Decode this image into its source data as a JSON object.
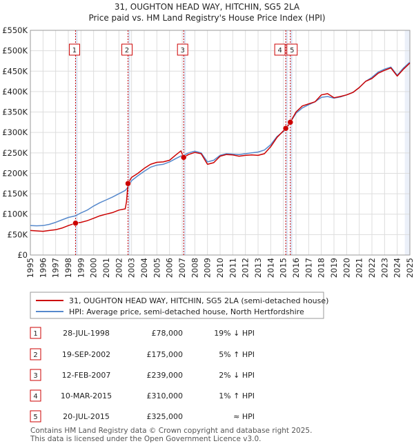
{
  "chart_data": {
    "type": "line",
    "title": "31, OUGHTON HEAD WAY, HITCHIN, SG5 2LA",
    "subtitle": "Price paid vs. HM Land Registry's House Price Index (HPI)",
    "xlim": [
      1995,
      2025
    ],
    "ylim": [
      0,
      550000
    ],
    "x_ticks": [
      1995,
      1996,
      1997,
      1998,
      1999,
      2000,
      2001,
      2002,
      2003,
      2004,
      2005,
      2006,
      2007,
      2008,
      2009,
      2010,
      2011,
      2012,
      2013,
      2014,
      2015,
      2016,
      2017,
      2018,
      2019,
      2020,
      2021,
      2022,
      2023,
      2024,
      2025
    ],
    "y_ticks": [
      {
        "value": 0,
        "label": "£0"
      },
      {
        "value": 50000,
        "label": "£50K"
      },
      {
        "value": 100000,
        "label": "£100K"
      },
      {
        "value": 150000,
        "label": "£150K"
      },
      {
        "value": 200000,
        "label": "£200K"
      },
      {
        "value": 250000,
        "label": "£250K"
      },
      {
        "value": 300000,
        "label": "£300K"
      },
      {
        "value": 350000,
        "label": "£350K"
      },
      {
        "value": 400000,
        "label": "£400K"
      },
      {
        "value": 450000,
        "label": "£450K"
      },
      {
        "value": 500000,
        "label": "£500K"
      },
      {
        "value": 550000,
        "label": "£550K"
      }
    ],
    "series": [
      {
        "name": "31, OUGHTON HEAD WAY, HITCHIN, SG5 2LA (semi-detached house)",
        "color": "#cc0000",
        "points": [
          [
            1995.0,
            60000
          ],
          [
            1995.5,
            59000
          ],
          [
            1996.0,
            58000
          ],
          [
            1996.5,
            60000
          ],
          [
            1997.0,
            62000
          ],
          [
            1997.5,
            66000
          ],
          [
            1998.0,
            72000
          ],
          [
            1998.57,
            78000
          ],
          [
            1999.0,
            80000
          ],
          [
            1999.5,
            84000
          ],
          [
            2000.0,
            90000
          ],
          [
            2000.5,
            96000
          ],
          [
            2001.0,
            100000
          ],
          [
            2001.5,
            104000
          ],
          [
            2002.0,
            110000
          ],
          [
            2002.5,
            113000
          ],
          [
            2002.6,
            130000
          ],
          [
            2002.72,
            175000
          ],
          [
            2003.0,
            190000
          ],
          [
            2003.5,
            200000
          ],
          [
            2004.0,
            212000
          ],
          [
            2004.5,
            222000
          ],
          [
            2005.0,
            227000
          ],
          [
            2005.5,
            228000
          ],
          [
            2006.0,
            232000
          ],
          [
            2006.5,
            245000
          ],
          [
            2006.9,
            255000
          ],
          [
            2007.12,
            239000
          ],
          [
            2007.5,
            246000
          ],
          [
            2008.0,
            251000
          ],
          [
            2008.5,
            248000
          ],
          [
            2009.0,
            222000
          ],
          [
            2009.5,
            226000
          ],
          [
            2010.0,
            242000
          ],
          [
            2010.5,
            246000
          ],
          [
            2011.0,
            245000
          ],
          [
            2011.5,
            242000
          ],
          [
            2012.0,
            244000
          ],
          [
            2012.5,
            245000
          ],
          [
            2013.0,
            244000
          ],
          [
            2013.5,
            248000
          ],
          [
            2014.0,
            265000
          ],
          [
            2014.5,
            288000
          ],
          [
            2015.19,
            310000
          ],
          [
            2015.55,
            325000
          ],
          [
            2016.0,
            350000
          ],
          [
            2016.5,
            365000
          ],
          [
            2017.0,
            370000
          ],
          [
            2017.5,
            375000
          ],
          [
            2018.0,
            392000
          ],
          [
            2018.5,
            395000
          ],
          [
            2019.0,
            385000
          ],
          [
            2019.5,
            388000
          ],
          [
            2020.0,
            392000
          ],
          [
            2020.5,
            398000
          ],
          [
            2021.0,
            410000
          ],
          [
            2021.5,
            425000
          ],
          [
            2022.0,
            432000
          ],
          [
            2022.5,
            445000
          ],
          [
            2023.0,
            452000
          ],
          [
            2023.5,
            458000
          ],
          [
            2024.0,
            438000
          ],
          [
            2024.5,
            455000
          ],
          [
            2025.0,
            470000
          ]
        ]
      },
      {
        "name": "HPI: Average price, semi-detached house, North Hertfordshire",
        "color": "#5588cc",
        "points": [
          [
            1995.0,
            72000
          ],
          [
            1995.5,
            71500
          ],
          [
            1996.0,
            72000
          ],
          [
            1996.5,
            75000
          ],
          [
            1997.0,
            80000
          ],
          [
            1997.5,
            86000
          ],
          [
            1998.0,
            92000
          ],
          [
            1998.57,
            96000
          ],
          [
            1999.0,
            103000
          ],
          [
            1999.5,
            110000
          ],
          [
            2000.0,
            120000
          ],
          [
            2000.5,
            128000
          ],
          [
            2001.0,
            135000
          ],
          [
            2001.5,
            142000
          ],
          [
            2002.0,
            150000
          ],
          [
            2002.5,
            158000
          ],
          [
            2002.72,
            166000
          ],
          [
            2003.0,
            182000
          ],
          [
            2003.5,
            194000
          ],
          [
            2004.0,
            205000
          ],
          [
            2004.5,
            215000
          ],
          [
            2005.0,
            220000
          ],
          [
            2005.5,
            222000
          ],
          [
            2006.0,
            228000
          ],
          [
            2006.5,
            236000
          ],
          [
            2007.0,
            244000
          ],
          [
            2007.12,
            244000
          ],
          [
            2007.5,
            250000
          ],
          [
            2008.0,
            254000
          ],
          [
            2008.5,
            250000
          ],
          [
            2009.0,
            228000
          ],
          [
            2009.5,
            232000
          ],
          [
            2010.0,
            244000
          ],
          [
            2010.5,
            248000
          ],
          [
            2011.0,
            247000
          ],
          [
            2011.5,
            246000
          ],
          [
            2012.0,
            248000
          ],
          [
            2012.5,
            250000
          ],
          [
            2013.0,
            252000
          ],
          [
            2013.5,
            257000
          ],
          [
            2014.0,
            270000
          ],
          [
            2014.5,
            290000
          ],
          [
            2015.19,
            307000
          ],
          [
            2015.55,
            325000
          ],
          [
            2016.0,
            347000
          ],
          [
            2016.5,
            360000
          ],
          [
            2017.0,
            368000
          ],
          [
            2017.5,
            375000
          ],
          [
            2018.0,
            386000
          ],
          [
            2018.5,
            388000
          ],
          [
            2019.0,
            384000
          ],
          [
            2019.5,
            387000
          ],
          [
            2020.0,
            392000
          ],
          [
            2020.5,
            398000
          ],
          [
            2021.0,
            410000
          ],
          [
            2021.5,
            425000
          ],
          [
            2022.0,
            435000
          ],
          [
            2022.5,
            448000
          ],
          [
            2023.0,
            455000
          ],
          [
            2023.5,
            460000
          ],
          [
            2024.0,
            440000
          ],
          [
            2024.5,
            458000
          ],
          [
            2025.0,
            472000
          ]
        ]
      }
    ],
    "sales": [
      {
        "num": "1",
        "x": 1998.57,
        "price": 78000,
        "date": "28-JUL-1998",
        "price_label": "£78,000",
        "hpi": "19% ↓ HPI"
      },
      {
        "num": "2",
        "x": 2002.72,
        "price": 175000,
        "date": "19-SEP-2002",
        "price_label": "£175,000",
        "hpi": "5% ↑ HPI"
      },
      {
        "num": "3",
        "x": 2007.12,
        "price": 239000,
        "date": "12-FEB-2007",
        "price_label": "£239,000",
        "hpi": "2% ↓ HPI"
      },
      {
        "num": "4",
        "x": 2015.19,
        "price": 310000,
        "date": "10-MAR-2015",
        "price_label": "£310,000",
        "hpi": "1% ↑ HPI"
      },
      {
        "num": "5",
        "x": 2015.55,
        "price": 325000,
        "date": "20-JUL-2015",
        "price_label": "£325,000",
        "hpi": "≈ HPI"
      }
    ],
    "highlight_color": "#dde6f5",
    "grid": true
  },
  "footer": {
    "line1": "Contains HM Land Registry data © Crown copyright and database right 2025.",
    "line2": "This data is licensed under the Open Government Licence v3.0."
  }
}
